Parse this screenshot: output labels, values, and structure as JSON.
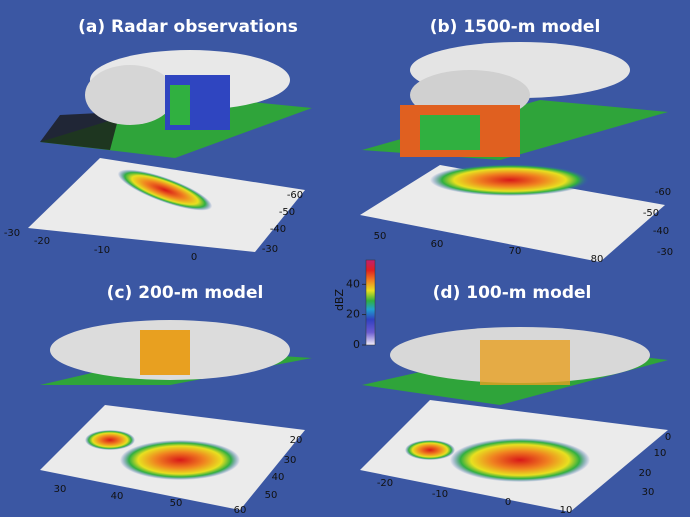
{
  "panels": [
    {
      "title": "(a) Radar observations",
      "x_ticks": [
        -30,
        -20,
        -10,
        0
      ],
      "y_ticks": [
        -30,
        -40,
        -50,
        -60
      ]
    },
    {
      "title": "(b) 1500-m model",
      "x_ticks": [
        50,
        60,
        70,
        80
      ],
      "y_ticks": [
        -30,
        -40,
        -50,
        -60
      ]
    },
    {
      "title": "(c) 200-m model",
      "x_ticks": [
        30,
        40,
        50,
        60
      ],
      "y_ticks": [
        50,
        40,
        30,
        20
      ]
    },
    {
      "title": "(d) 100-m model",
      "x_ticks": [
        -20,
        -10,
        0,
        10
      ],
      "y_ticks": [
        30,
        20,
        10,
        0
      ]
    }
  ],
  "colorbar": {
    "label": "dBZ",
    "lim": [
      0,
      56
    ],
    "ticks": [
      0,
      20,
      40
    ]
  }
}
